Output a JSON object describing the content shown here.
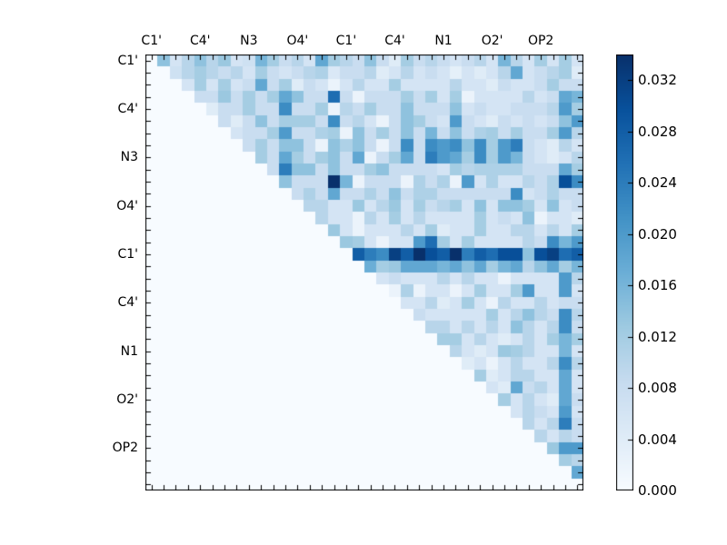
{
  "chart_data": {
    "type": "heatmap",
    "title": "",
    "grid_size": 36,
    "mask": "lower_triangle_and_diagonal_empty",
    "x_axis": {
      "side": "top",
      "tick_labels": [
        "C1'",
        "C4'",
        "N3",
        "O4'",
        "C1'",
        "C4'",
        "N1",
        "O2'",
        "OP2"
      ],
      "tick_positions": [
        0,
        4,
        8,
        12,
        16,
        20,
        24,
        28,
        32
      ]
    },
    "y_axis": {
      "side": "left",
      "tick_labels": [
        "C1'",
        "C4'",
        "N3",
        "O4'",
        "C1'",
        "C4'",
        "N1",
        "O2'",
        "OP2"
      ],
      "tick_positions": [
        0,
        4,
        8,
        12,
        16,
        20,
        24,
        28,
        32
      ]
    },
    "colormap": {
      "name": "Blues",
      "anchor_colors": [
        "#f7fbff",
        "#deebf7",
        "#c6dbef",
        "#9ecae1",
        "#6baed6",
        "#4292c6",
        "#2171b5",
        "#08519c",
        "#08306b"
      ],
      "vmin": 0.0,
      "vmax": 0.034
    },
    "colorbar": {
      "tick_values": [
        0.0,
        0.004,
        0.008,
        0.012,
        0.016,
        0.02,
        0.024,
        0.028,
        0.032
      ],
      "tick_labels": [
        "0.000",
        "0.004",
        "0.008",
        "0.012",
        "0.016",
        "0.020",
        "0.024",
        "0.028",
        "0.032"
      ]
    },
    "rows_upper_note": "row i holds values for columns i+1..35 (strict upper triangle)",
    "rows_upper": [
      [
        0.014,
        0.006,
        0.01,
        0.014,
        0.01,
        0.013,
        0.006,
        0.007,
        0.016,
        0.012,
        0.008,
        0.01,
        0.006,
        0.018,
        0.012,
        0.01,
        0.008,
        0.014,
        0.008,
        0.004,
        0.012,
        0.008,
        0.01,
        0.008,
        0.006,
        0.008,
        0.01,
        0.006,
        0.016,
        0.01,
        0.006,
        0.012,
        0.006,
        0.012,
        0.006
      ],
      [
        0.007,
        0.01,
        0.012,
        0.01,
        0.008,
        0.01,
        0.006,
        0.012,
        0.008,
        0.006,
        0.008,
        0.01,
        0.011,
        0.005,
        0.008,
        0.008,
        0.01,
        0.004,
        0.006,
        0.01,
        0.006,
        0.008,
        0.006,
        0.003,
        0.006,
        0.004,
        0.006,
        0.01,
        0.018,
        0.006,
        0.008,
        0.01,
        0.012,
        0.004
      ],
      [
        0.006,
        0.012,
        0.006,
        0.012,
        0.006,
        0.008,
        0.018,
        0.008,
        0.012,
        0.004,
        0.008,
        0.006,
        0.002,
        0.006,
        0.01,
        0.006,
        0.006,
        0.012,
        0.006,
        0.006,
        0.006,
        0.006,
        0.01,
        0.006,
        0.006,
        0.004,
        0.008,
        0.006,
        0.006,
        0.008,
        0.012,
        0.008,
        0.008
      ],
      [
        0.008,
        0.008,
        0.013,
        0.008,
        0.012,
        0.008,
        0.012,
        0.018,
        0.014,
        0.008,
        0.008,
        0.026,
        0.008,
        0.002,
        0.008,
        0.008,
        0.008,
        0.012,
        0.008,
        0.012,
        0.006,
        0.012,
        0.002,
        0.006,
        0.006,
        0.006,
        0.006,
        0.01,
        0.006,
        0.008,
        0.018,
        0.016
      ],
      [
        0.004,
        0.008,
        0.008,
        0.012,
        0.008,
        0.008,
        0.022,
        0.008,
        0.008,
        0.012,
        0.002,
        0.01,
        0.008,
        0.012,
        0.008,
        0.008,
        0.014,
        0.008,
        0.008,
        0.008,
        0.014,
        0.006,
        0.008,
        0.006,
        0.006,
        0.008,
        0.008,
        0.008,
        0.01,
        0.02,
        0.012
      ],
      [
        0.008,
        0.004,
        0.008,
        0.014,
        0.008,
        0.012,
        0.012,
        0.012,
        0.008,
        0.022,
        0.008,
        0.01,
        0.006,
        0.002,
        0.008,
        0.014,
        0.012,
        0.008,
        0.006,
        0.02,
        0.008,
        0.006,
        0.004,
        0.008,
        0.006,
        0.008,
        0.006,
        0.008,
        0.014,
        0.02
      ],
      [
        0.006,
        0.008,
        0.008,
        0.012,
        0.02,
        0.008,
        0.008,
        0.011,
        0.012,
        0.002,
        0.014,
        0.008,
        0.012,
        0.008,
        0.014,
        0.008,
        0.016,
        0.008,
        0.014,
        0.008,
        0.011,
        0.012,
        0.008,
        0.012,
        0.008,
        0.008,
        0.012,
        0.02,
        0.01
      ],
      [
        0.008,
        0.012,
        0.008,
        0.014,
        0.014,
        0.008,
        0.002,
        0.014,
        0.011,
        0.014,
        0.008,
        0.002,
        0.008,
        0.022,
        0.008,
        0.022,
        0.02,
        0.022,
        0.014,
        0.022,
        0.012,
        0.02,
        0.024,
        0.008,
        0.006,
        0.004,
        0.01,
        0.006
      ],
      [
        0.012,
        0.008,
        0.018,
        0.012,
        0.008,
        0.012,
        0.014,
        0.008,
        0.018,
        0.002,
        0.008,
        0.012,
        0.018,
        0.008,
        0.024,
        0.02,
        0.018,
        0.012,
        0.022,
        0.012,
        0.02,
        0.016,
        0.008,
        0.006,
        0.004,
        0.006,
        0.01
      ],
      [
        0.008,
        0.024,
        0.014,
        0.014,
        0.008,
        0.014,
        0.008,
        0.008,
        0.012,
        0.014,
        0.008,
        0.008,
        0.008,
        0.008,
        0.006,
        0.012,
        0.01,
        0.011,
        0.011,
        0.011,
        0.011,
        0.008,
        0.008,
        0.008,
        0.018,
        0.012
      ],
      [
        0.014,
        0.008,
        0.008,
        0.008,
        0.034,
        0.016,
        0.002,
        0.008,
        0.008,
        0.008,
        0.002,
        0.011,
        0.008,
        0.011,
        0.002,
        0.02,
        0.006,
        0.011,
        0.006,
        0.006,
        0.01,
        0.008,
        0.011,
        0.03,
        0.022
      ],
      [
        0.008,
        0.011,
        0.008,
        0.018,
        0.008,
        0.008,
        0.011,
        0.008,
        0.014,
        0.008,
        0.011,
        0.011,
        0.008,
        0.008,
        0.008,
        0.008,
        0.008,
        0.008,
        0.022,
        0.006,
        0.008,
        0.011,
        0.008,
        0.008
      ],
      [
        0.01,
        0.01,
        0.006,
        0.006,
        0.013,
        0.006,
        0.01,
        0.013,
        0.006,
        0.012,
        0.008,
        0.01,
        0.012,
        0.006,
        0.014,
        0.006,
        0.014,
        0.014,
        0.012,
        0.006,
        0.014,
        0.006,
        0.008
      ],
      [
        0.01,
        0.006,
        0.006,
        0.002,
        0.01,
        0.006,
        0.012,
        0.006,
        0.01,
        0.006,
        0.006,
        0.006,
        0.006,
        0.012,
        0.006,
        0.008,
        0.006,
        0.014,
        0.002,
        0.006,
        0.006,
        0.004
      ],
      [
        0.013,
        0.006,
        0.002,
        0.006,
        0.006,
        0.006,
        0.01,
        0.006,
        0.012,
        0.004,
        0.006,
        0.006,
        0.012,
        0.006,
        0.006,
        0.01,
        0.01,
        0.006,
        0.01,
        0.006,
        0.012
      ],
      [
        0.013,
        0.012,
        0.006,
        0.002,
        0.006,
        0.006,
        0.02,
        0.026,
        0.012,
        0.006,
        0.012,
        0.006,
        0.006,
        0.006,
        0.006,
        0.01,
        0.008,
        0.022,
        0.016,
        0.02
      ],
      [
        0.028,
        0.024,
        0.022,
        0.032,
        0.028,
        0.034,
        0.03,
        0.028,
        0.034,
        0.024,
        0.028,
        0.026,
        0.03,
        0.03,
        0.014,
        0.03,
        0.032,
        0.026,
        0.028
      ],
      [
        0.017,
        0.012,
        0.013,
        0.018,
        0.018,
        0.018,
        0.016,
        0.018,
        0.014,
        0.018,
        0.012,
        0.016,
        0.018,
        0.01,
        0.014,
        0.018,
        0.012,
        0.016
      ],
      [
        0.006,
        0.008,
        0.006,
        0.006,
        0.006,
        0.01,
        0.006,
        0.01,
        0.006,
        0.006,
        0.002,
        0.006,
        0.006,
        0.006,
        0.006,
        0.02,
        0.01
      ],
      [
        0.002,
        0.011,
        0.002,
        0.006,
        0.006,
        0.002,
        0.006,
        0.012,
        0.006,
        0.006,
        0.012,
        0.02,
        0.006,
        0.006,
        0.02,
        0.006
      ],
      [
        0.006,
        0.006,
        0.01,
        0.004,
        0.006,
        0.012,
        0.006,
        0.002,
        0.01,
        0.006,
        0.006,
        0.01,
        0.006,
        0.008,
        0.008
      ],
      [
        0.008,
        0.006,
        0.006,
        0.006,
        0.006,
        0.006,
        0.012,
        0.006,
        0.01,
        0.014,
        0.01,
        0.008,
        0.022,
        0.01
      ],
      [
        0.01,
        0.01,
        0.006,
        0.01,
        0.006,
        0.01,
        0.006,
        0.014,
        0.01,
        0.006,
        0.01,
        0.022,
        0.008
      ],
      [
        0.012,
        0.012,
        0.006,
        0.01,
        0.006,
        0.004,
        0.006,
        0.01,
        0.006,
        0.012,
        0.016,
        0.012
      ],
      [
        0.01,
        0.006,
        0.004,
        0.006,
        0.013,
        0.012,
        0.01,
        0.006,
        0.006,
        0.016,
        0.006
      ],
      [
        0.004,
        0.006,
        0.002,
        0.006,
        0.01,
        0.006,
        0.006,
        0.01,
        0.022,
        0.01
      ],
      [
        0.012,
        0.004,
        0.006,
        0.01,
        0.01,
        0.006,
        0.006,
        0.018,
        0.006
      ],
      [
        0.006,
        0.004,
        0.018,
        0.008,
        0.01,
        0.006,
        0.018,
        0.006
      ],
      [
        0.012,
        0.006,
        0.01,
        0.006,
        0.004,
        0.018,
        0.008
      ],
      [
        0.006,
        0.01,
        0.008,
        0.006,
        0.02,
        0.006
      ],
      [
        0.01,
        0.006,
        0.01,
        0.024,
        0.008
      ],
      [
        0.01,
        0.006,
        0.01,
        0.008
      ],
      [
        0.013,
        0.02,
        0.02
      ],
      [
        0.012,
        0.01
      ],
      [
        0.018
      ],
      []
    ]
  }
}
